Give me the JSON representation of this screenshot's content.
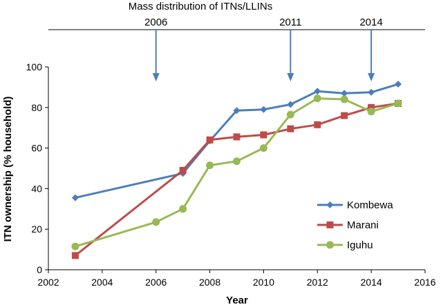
{
  "chart_data": {
    "type": "line",
    "title": "Mass distribution of ITNs/LLINs",
    "xlabel": "Year",
    "ylabel": "ITN ownership (% household)",
    "xlim": [
      2002,
      2016
    ],
    "ylim": [
      0,
      100
    ],
    "xticks": [
      2002,
      2004,
      2006,
      2008,
      2010,
      2012,
      2014,
      2016
    ],
    "yticks": [
      0,
      20,
      40,
      60,
      80,
      100
    ],
    "legend_position": "bottom-right",
    "distribution_events": [
      {
        "year": 2006,
        "label": "2006"
      },
      {
        "year": 2011,
        "label": "2011"
      },
      {
        "year": 2014,
        "label": "2014"
      }
    ],
    "series": [
      {
        "name": "Kombewa",
        "color": "#4a7ebb",
        "marker": "diamond",
        "points": [
          [
            2003,
            35.5
          ],
          [
            2007,
            47.5
          ],
          [
            2008,
            63.5
          ],
          [
            2009,
            78.5
          ],
          [
            2010,
            79
          ],
          [
            2011,
            81.5
          ],
          [
            2012,
            88
          ],
          [
            2013,
            87
          ],
          [
            2014,
            87.5
          ],
          [
            2015,
            91.5
          ]
        ]
      },
      {
        "name": "Marani",
        "color": "#be4b48",
        "marker": "square",
        "points": [
          [
            2003,
            7
          ],
          [
            2007,
            49
          ],
          [
            2008,
            64
          ],
          [
            2009,
            65.5
          ],
          [
            2010,
            66.5
          ],
          [
            2011,
            69.5
          ],
          [
            2012,
            71.5
          ],
          [
            2013,
            76
          ],
          [
            2014,
            80
          ],
          [
            2015,
            82
          ]
        ]
      },
      {
        "name": "Iguhu",
        "color": "#98b954",
        "marker": "circle",
        "points": [
          [
            2003,
            11.5
          ],
          [
            2006,
            23.5
          ],
          [
            2007,
            30
          ],
          [
            2008,
            51.5
          ],
          [
            2009,
            53.5
          ],
          [
            2010,
            60
          ],
          [
            2011,
            76.5
          ],
          [
            2012,
            84.5
          ],
          [
            2013,
            84
          ],
          [
            2014,
            78
          ],
          [
            2015,
            82
          ]
        ]
      }
    ]
  }
}
